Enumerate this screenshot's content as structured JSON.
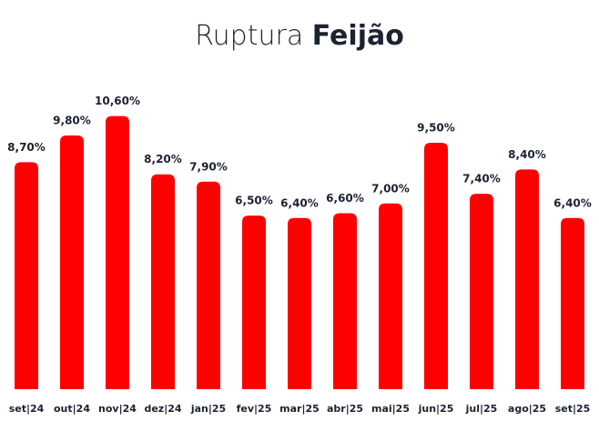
{
  "chart_data": {
    "type": "bar",
    "title": "Ruptura",
    "title_emphasis": "Feijão",
    "categories": [
      "set|24",
      "out|24",
      "nov|24",
      "dez|24",
      "jan|25",
      "fev|25",
      "mar|25",
      "abr|25",
      "mai|25",
      "jun|25",
      "jul|25",
      "ago|25",
      "set|25"
    ],
    "values": [
      8.7,
      9.8,
      10.6,
      8.2,
      7.9,
      6.5,
      6.4,
      6.6,
      7.0,
      9.5,
      7.4,
      8.4,
      6.4
    ],
    "value_labels": [
      "8,70%",
      "9,80%",
      "10,60%",
      "8,20%",
      "7,90%",
      "6,50%",
      "6,40%",
      "6,60%",
      "7,00%",
      "9,50%",
      "7,40%",
      "8,40%",
      "6,40%"
    ],
    "color": "#ff0000",
    "ylim": [
      -0.65,
      11
    ],
    "grid": false
  }
}
